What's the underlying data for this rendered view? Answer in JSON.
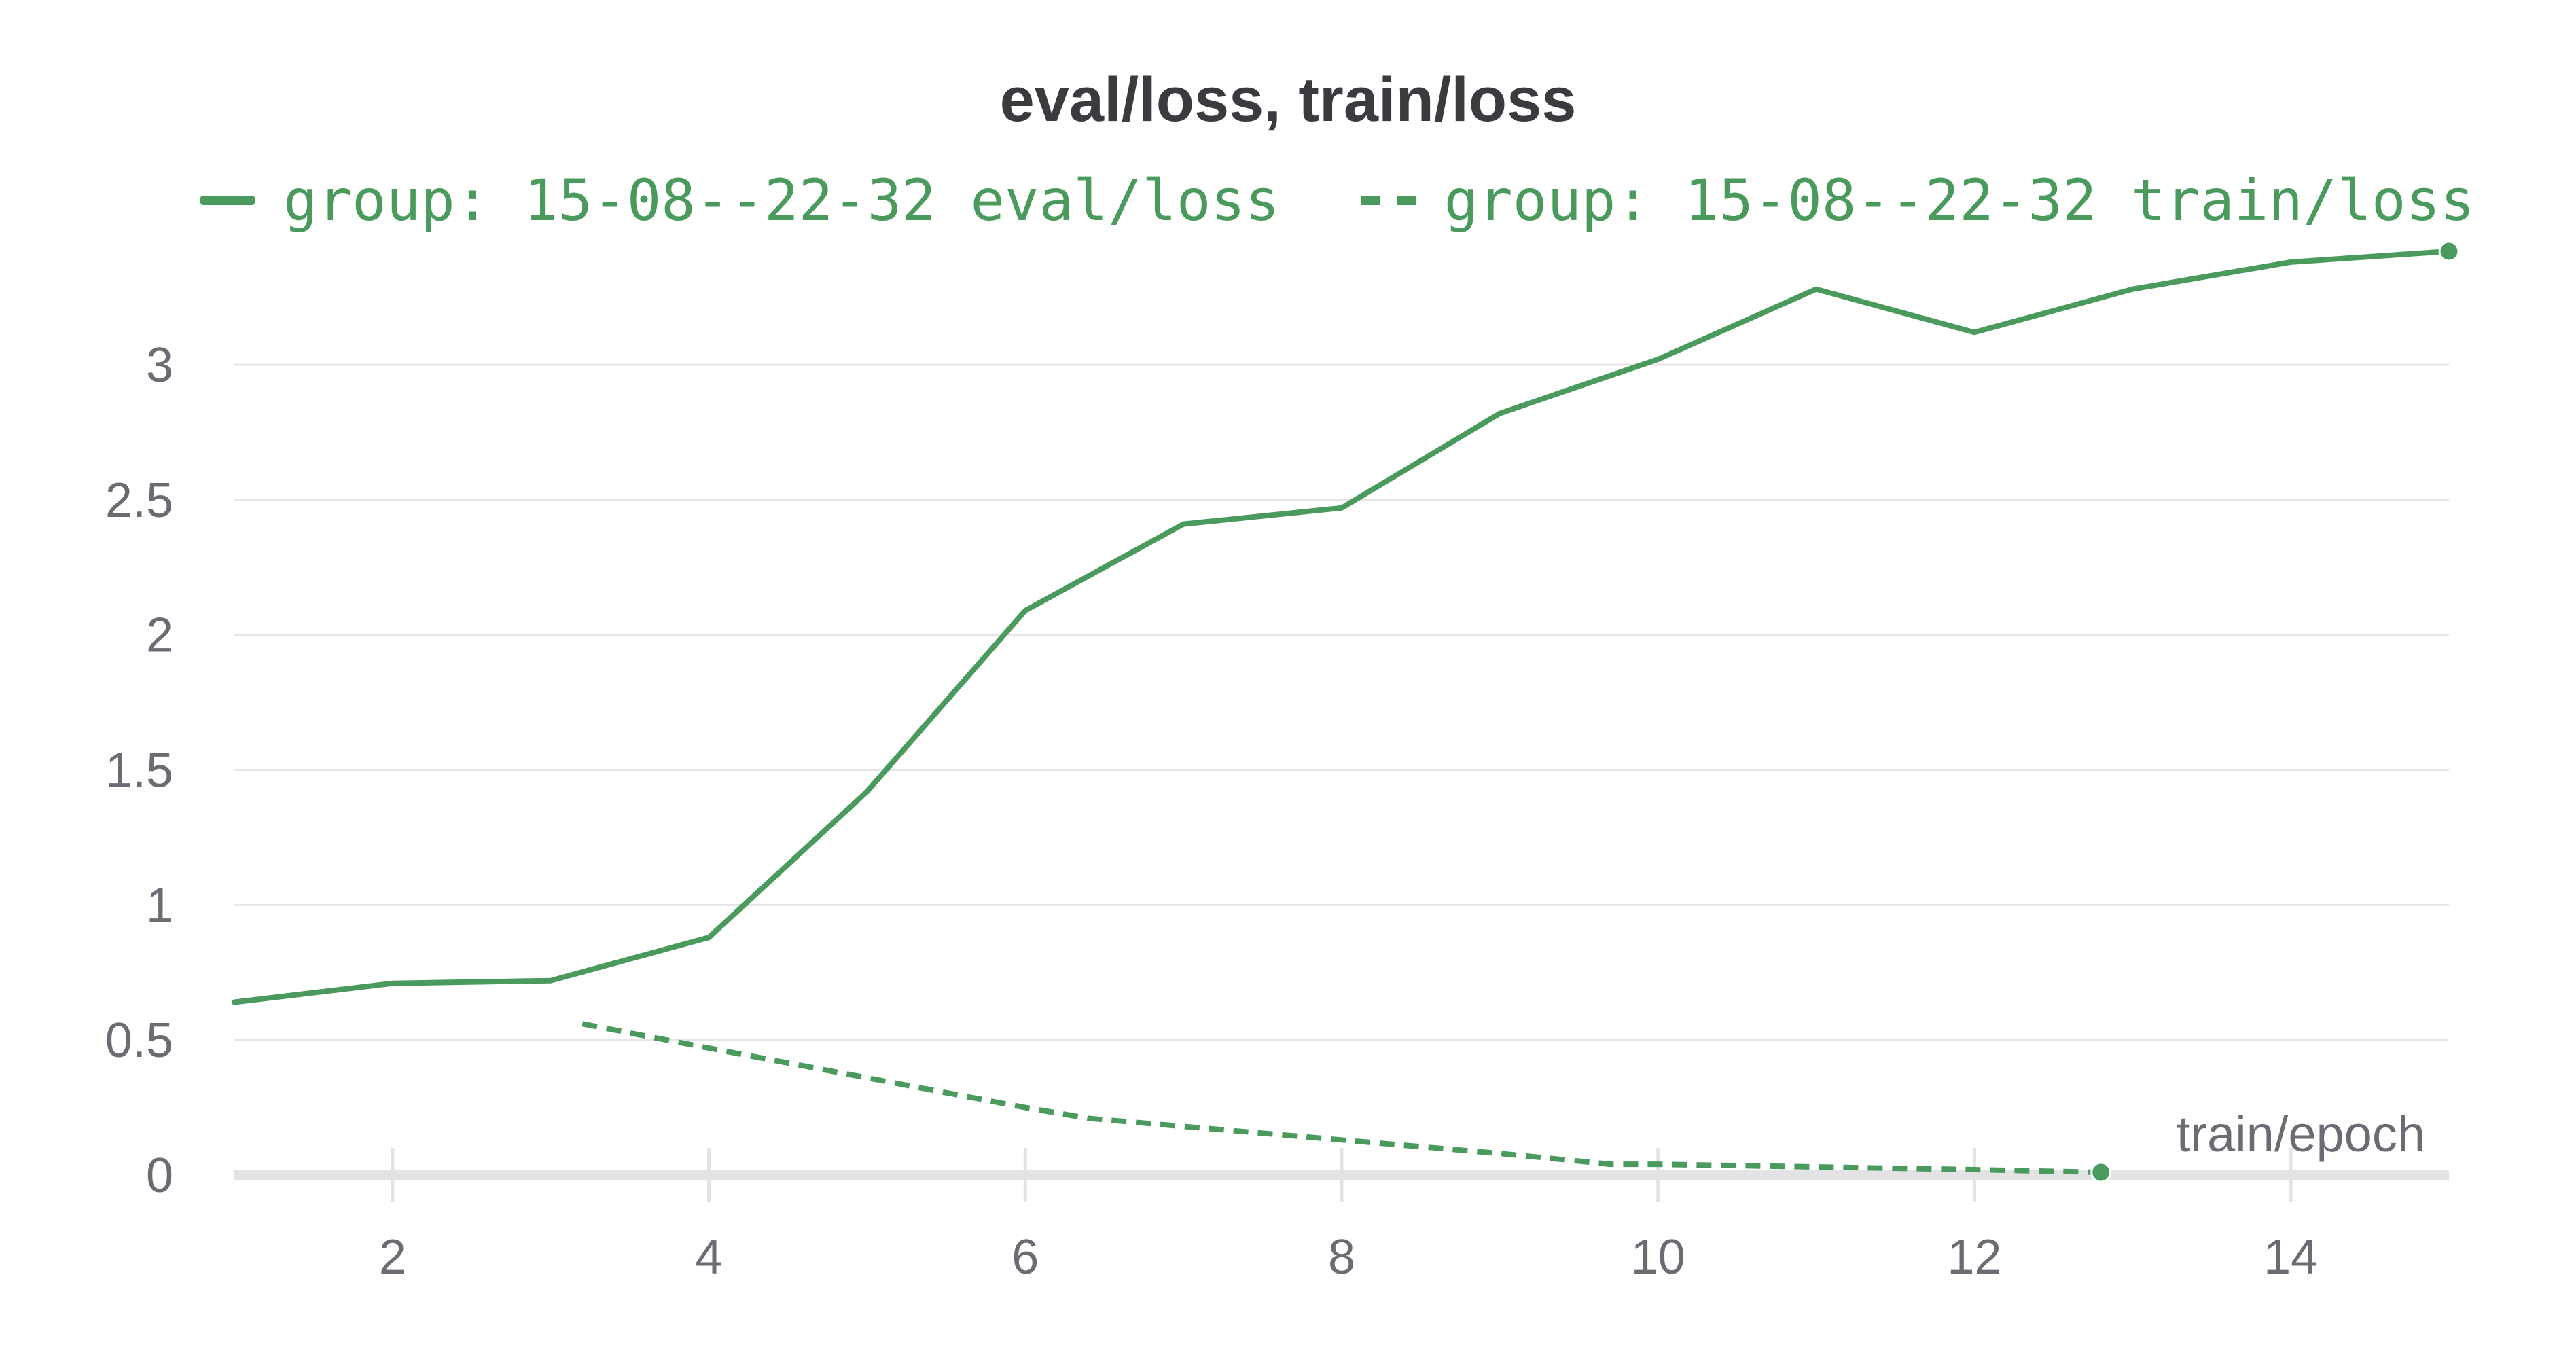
{
  "chart_data": {
    "type": "line",
    "title": "eval/loss, train/loss",
    "xlabel": "train/epoch",
    "ylabel": "",
    "xlim": [
      1,
      15
    ],
    "ylim": [
      0,
      3.4
    ],
    "x_ticks": [
      2,
      4,
      6,
      8,
      10,
      12,
      14
    ],
    "y_ticks": [
      0,
      0.5,
      1,
      1.5,
      2,
      2.5,
      3
    ],
    "grid": true,
    "legend_position": "top",
    "series": [
      {
        "name": "group: 15-08--22-32 eval/loss",
        "style": "solid",
        "color": "#4a9a5e",
        "x": [
          1,
          2,
          3,
          4,
          5,
          6,
          7,
          8,
          9,
          10,
          11,
          12,
          13,
          14,
          15
        ],
        "y": [
          0.64,
          0.71,
          0.72,
          0.88,
          1.42,
          2.09,
          2.41,
          2.47,
          2.82,
          3.02,
          3.28,
          3.12,
          3.28,
          3.38,
          3.42
        ]
      },
      {
        "name": "group: 15-08--22-32 train/loss",
        "style": "dashed",
        "color": "#4a9a5e",
        "x": [
          3.2,
          4,
          5,
          6,
          6.4,
          7,
          8,
          9,
          9.7,
          10,
          11,
          12,
          12.8
        ],
        "y": [
          0.56,
          0.47,
          0.36,
          0.25,
          0.21,
          0.18,
          0.13,
          0.08,
          0.04,
          0.04,
          0.03,
          0.02,
          0.01
        ]
      }
    ]
  }
}
